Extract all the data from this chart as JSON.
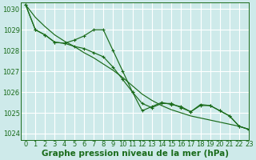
{
  "title": "Graphe pression niveau de la mer (hPa)",
  "bg_color": "#ceeaea",
  "grid_color": "#ffffff",
  "line_color": "#1a6b1a",
  "xlim": [
    -0.5,
    23
  ],
  "ylim": [
    1023.7,
    1030.3
  ],
  "yticks": [
    1024,
    1025,
    1026,
    1027,
    1028,
    1029,
    1030
  ],
  "xticks": [
    0,
    1,
    2,
    3,
    4,
    5,
    6,
    7,
    8,
    9,
    10,
    11,
    12,
    13,
    14,
    15,
    16,
    17,
    18,
    19,
    20,
    21,
    22,
    23
  ],
  "series1_x": [
    0,
    1,
    2,
    3,
    4,
    5,
    6,
    7,
    8,
    9,
    10,
    11,
    12,
    13,
    14,
    15,
    16,
    17,
    18,
    19,
    20,
    21,
    22,
    23
  ],
  "series1_y": [
    1030.2,
    1029.0,
    1028.75,
    1028.4,
    1028.35,
    1028.5,
    1028.7,
    1029.0,
    1029.0,
    1028.0,
    1027.0,
    1026.0,
    1025.1,
    1025.3,
    1025.5,
    1025.4,
    1025.3,
    1025.05,
    1025.4,
    1025.35,
    1025.1,
    1024.85,
    1024.35,
    1024.2
  ],
  "series2_x": [
    0,
    1,
    2,
    3,
    4,
    5,
    6,
    7,
    8,
    9,
    10,
    11,
    12,
    13,
    14,
    15,
    16,
    17,
    18,
    19,
    20,
    21,
    22,
    23
  ],
  "series2_y": [
    1030.2,
    1029.6,
    1029.15,
    1028.75,
    1028.45,
    1028.2,
    1027.9,
    1027.65,
    1027.35,
    1027.05,
    1026.7,
    1026.3,
    1025.9,
    1025.6,
    1025.35,
    1025.15,
    1025.0,
    1024.85,
    1024.75,
    1024.65,
    1024.55,
    1024.45,
    1024.35,
    1024.2
  ],
  "series3_x": [
    0,
    1,
    2,
    3,
    4,
    5,
    6,
    7,
    8,
    9,
    10,
    11,
    12,
    13,
    14,
    15,
    16,
    17,
    18,
    19,
    20,
    21,
    22,
    23
  ],
  "series3_y": [
    1030.2,
    1029.0,
    1028.75,
    1028.4,
    1028.35,
    1028.2,
    1028.1,
    1027.9,
    1027.7,
    1027.2,
    1026.6,
    1026.0,
    1025.45,
    1025.25,
    1025.45,
    1025.45,
    1025.25,
    1025.05,
    1025.35,
    1025.35,
    1025.1,
    1024.85,
    1024.35,
    1024.2
  ],
  "title_fontsize": 7.5,
  "tick_fontsize": 6,
  "tick_color": "#1a6b1a"
}
